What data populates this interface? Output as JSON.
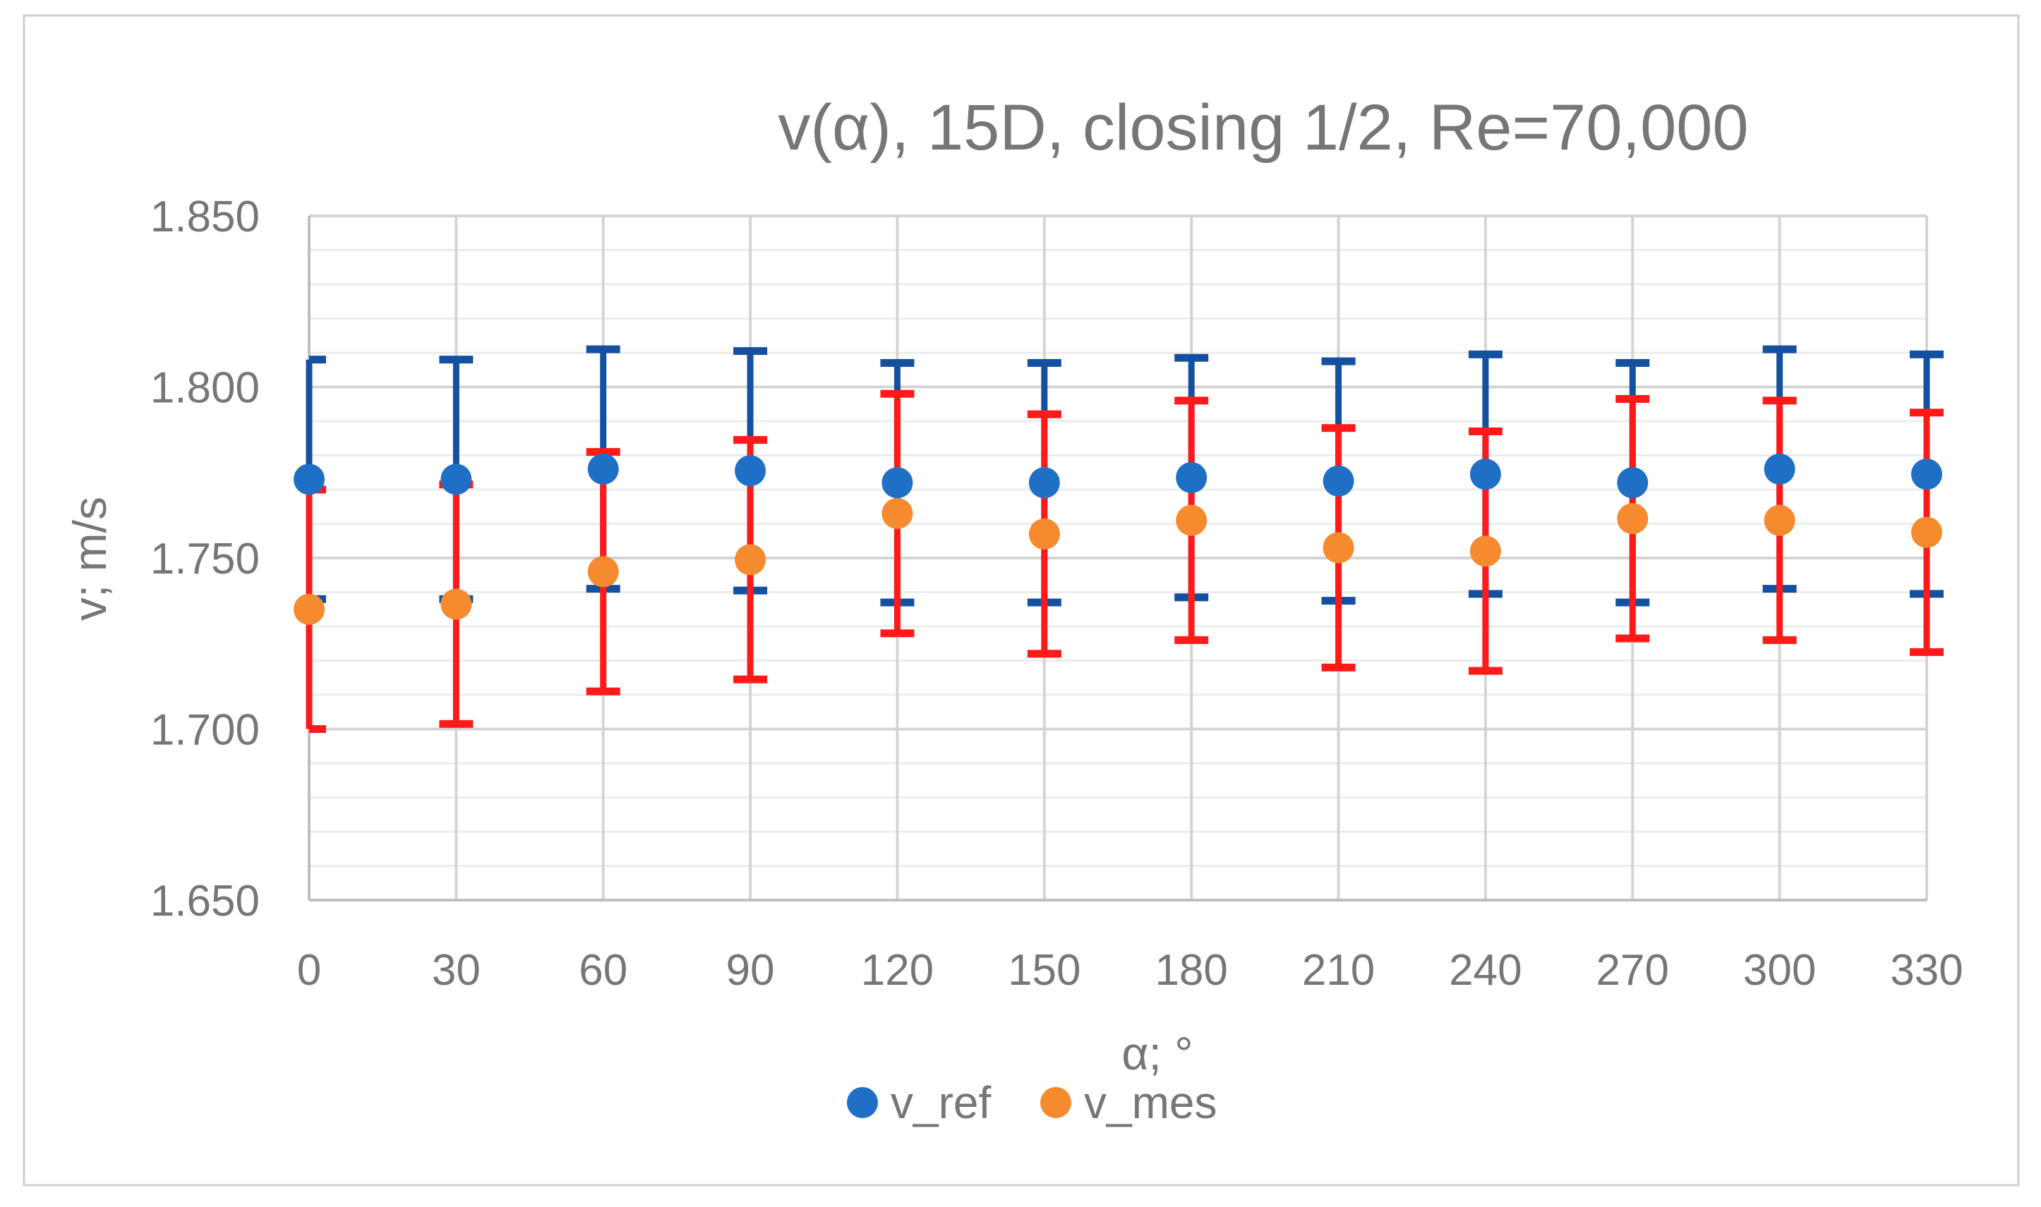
{
  "chart_data": {
    "type": "scatter",
    "title": "v(α), 15D, closing 1/2, Re=70,000",
    "xlabel": "α; °",
    "ylabel": "v; m/s",
    "categories": [
      "0",
      "30",
      "60",
      "90",
      "120",
      "150",
      "180",
      "210",
      "240",
      "270",
      "300",
      "330"
    ],
    "ylim": [
      1.65,
      1.85
    ],
    "ytick_labels": [
      "1.650",
      "1.700",
      "1.750",
      "1.800",
      "1.850"
    ],
    "major_step": 0.05,
    "minor_step": 0.01,
    "legend_position": "bottom",
    "series": [
      {
        "name": "v_ref",
        "marker_color": "#1F6FC6",
        "error_bar_color": "#1450A0",
        "values": [
          1.773,
          1.773,
          1.776,
          1.7755,
          1.772,
          1.772,
          1.7735,
          1.7725,
          1.7745,
          1.772,
          1.776,
          1.7745
        ],
        "error_minus": [
          0.035,
          0.035,
          0.035,
          0.035,
          0.035,
          0.035,
          0.035,
          0.035,
          0.035,
          0.035,
          0.035,
          0.035
        ],
        "error_plus": [
          0.035,
          0.035,
          0.035,
          0.035,
          0.035,
          0.035,
          0.035,
          0.035,
          0.035,
          0.035,
          0.035,
          0.035
        ]
      },
      {
        "name": "v_mes",
        "marker_color": "#F58A2E",
        "error_bar_color": "#FF1A1A",
        "values": [
          1.735,
          1.7365,
          1.746,
          1.7495,
          1.763,
          1.757,
          1.761,
          1.753,
          1.752,
          1.7615,
          1.761,
          1.7575
        ],
        "error_minus": [
          0.035,
          0.035,
          0.035,
          0.035,
          0.035,
          0.035,
          0.035,
          0.035,
          0.035,
          0.035,
          0.035,
          0.035
        ],
        "error_plus": [
          0.035,
          0.035,
          0.035,
          0.035,
          0.035,
          0.035,
          0.035,
          0.035,
          0.035,
          0.035,
          0.035,
          0.035
        ]
      }
    ]
  }
}
